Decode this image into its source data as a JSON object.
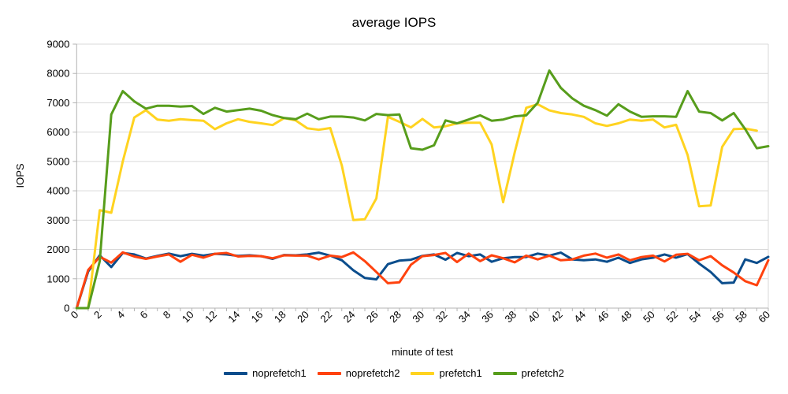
{
  "chart_data": {
    "type": "line",
    "title": "average IOPS",
    "xlabel": "minute of test",
    "ylabel": "IOPS",
    "xlim": [
      0,
      60
    ],
    "ylim": [
      0,
      9000
    ],
    "yticks": [
      0,
      1000,
      2000,
      3000,
      4000,
      5000,
      6000,
      7000,
      8000,
      9000
    ],
    "xtick_labels": [
      0,
      2,
      4,
      6,
      8,
      10,
      12,
      14,
      16,
      18,
      20,
      22,
      24,
      26,
      28,
      30,
      32,
      34,
      36,
      38,
      40,
      42,
      44,
      46,
      48,
      50,
      52,
      54,
      56,
      58,
      60
    ],
    "xtick_minor_step": 1,
    "grid": "horizontal",
    "legend_position": "bottom",
    "series": [
      {
        "name": "noprefetch1",
        "color": "#0b4d8c",
        "x_start": 0,
        "values": [
          0,
          1250,
          1800,
          1400,
          1880,
          1830,
          1690,
          1780,
          1860,
          1770,
          1850,
          1790,
          1850,
          1830,
          1780,
          1800,
          1770,
          1680,
          1810,
          1800,
          1830,
          1890,
          1790,
          1630,
          1290,
          1030,
          980,
          1500,
          1620,
          1650,
          1780,
          1830,
          1650,
          1880,
          1770,
          1830,
          1580,
          1700,
          1740,
          1740,
          1860,
          1790,
          1890,
          1660,
          1630,
          1660,
          1580,
          1720,
          1540,
          1660,
          1720,
          1830,
          1720,
          1840,
          1520,
          1230,
          850,
          870,
          1660,
          1540,
          1750
        ]
      },
      {
        "name": "noprefetch2",
        "color": "#ff420e",
        "x_start": 0,
        "values": [
          0,
          1300,
          1750,
          1550,
          1900,
          1760,
          1680,
          1760,
          1830,
          1580,
          1820,
          1720,
          1850,
          1880,
          1760,
          1780,
          1770,
          1700,
          1800,
          1790,
          1790,
          1660,
          1790,
          1740,
          1900,
          1600,
          1230,
          850,
          880,
          1480,
          1770,
          1810,
          1880,
          1570,
          1860,
          1600,
          1800,
          1700,
          1560,
          1790,
          1660,
          1790,
          1630,
          1660,
          1790,
          1860,
          1720,
          1830,
          1630,
          1740,
          1790,
          1590,
          1820,
          1850,
          1630,
          1770,
          1460,
          1215,
          920,
          780,
          1630
        ]
      },
      {
        "name": "prefetch1",
        "color": "#ffd320",
        "x_start": 0,
        "values": [
          0,
          0,
          3340,
          3250,
          5000,
          6500,
          6750,
          6430,
          6390,
          6440,
          6410,
          6390,
          6100,
          6300,
          6440,
          6350,
          6300,
          6240,
          6480,
          6400,
          6130,
          6080,
          6140,
          4860,
          3000,
          3030,
          3740,
          6520,
          6350,
          6160,
          6450,
          6160,
          6200,
          6300,
          6320,
          6320,
          5580,
          3610,
          5310,
          6830,
          6950,
          6740,
          6650,
          6600,
          6520,
          6300,
          6210,
          6300,
          6430,
          6390,
          6430,
          6160,
          6250,
          5220,
          3470,
          3500,
          5500,
          6100,
          6120,
          6050
        ]
      },
      {
        "name": "prefetch2",
        "color": "#579d1c",
        "x_start": 0,
        "values": [
          0,
          0,
          1600,
          6600,
          7400,
          7050,
          6800,
          6900,
          6900,
          6870,
          6890,
          6620,
          6830,
          6700,
          6750,
          6800,
          6730,
          6580,
          6480,
          6440,
          6630,
          6440,
          6530,
          6530,
          6500,
          6400,
          6620,
          6580,
          6600,
          5450,
          5400,
          5550,
          6400,
          6300,
          6430,
          6570,
          6390,
          6430,
          6540,
          6570,
          7000,
          8100,
          7510,
          7150,
          6900,
          6750,
          6560,
          6950,
          6700,
          6520,
          6540,
          6540,
          6520,
          7400,
          6700,
          6650,
          6400,
          6650,
          6100,
          5450,
          5520
        ]
      }
    ]
  },
  "colors": {
    "grid": "#d9d9d9",
    "axis": "#b3b3b3",
    "text": "#000000",
    "background": "#ffffff"
  }
}
